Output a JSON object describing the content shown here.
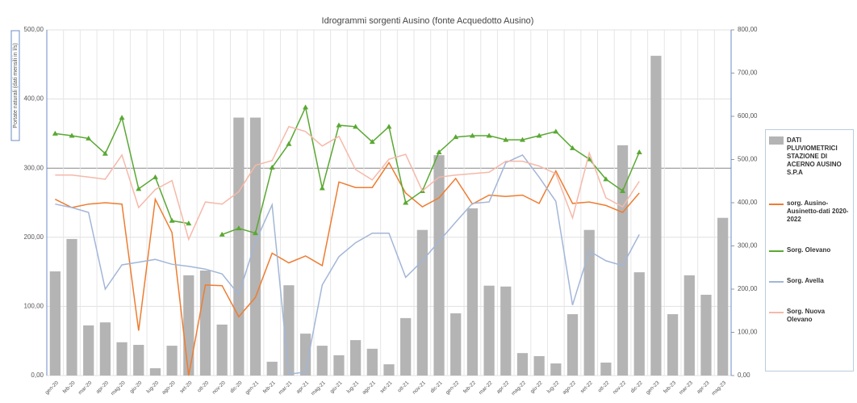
{
  "chart_data": {
    "type": "combo",
    "title": "Idrogrammi sorgenti Ausino (fonte Acquedotto Ausino)",
    "y_label": "Portate naturali  (dati mensili in l/s)",
    "categories": [
      "gen-20",
      "feb-20",
      "mar-20",
      "apr-20",
      "mag-20",
      "giu-20",
      "lug-20",
      "ago-20",
      "set-20",
      "ott-20",
      "nov-20",
      "dic-20",
      "gen-21",
      "feb-21",
      "mar-21",
      "apr-21",
      "mag-21",
      "giu-21",
      "lug-21",
      "ago-21",
      "set-21",
      "ott-21",
      "nov-21",
      "dic-21",
      "gen-22",
      "feb-22",
      "mar-22",
      "apr-22",
      "mag-22",
      "giu-22",
      "lug-22",
      "ago-22",
      "set-22",
      "ott-22",
      "nov-22",
      "dic-22",
      "gen-23",
      "feb-23",
      "mar-23",
      "apr-23",
      "mag-23"
    ],
    "ylim": [
      0,
      500
    ],
    "yticks": [
      {
        "value": 0,
        "label": "0,00"
      },
      {
        "value": 100,
        "label": "100,00"
      },
      {
        "value": 200,
        "label": "200,00"
      },
      {
        "value": 300,
        "label": "300,00"
      },
      {
        "value": 400,
        "label": "400,00"
      },
      {
        "value": 500,
        "label": "500,00"
      }
    ],
    "y2lim": [
      0,
      800
    ],
    "y2ticks": [
      {
        "value": 0,
        "label": "0,00"
      },
      {
        "value": 100,
        "label": "100,00"
      },
      {
        "value": 200,
        "label": "200,00"
      },
      {
        "value": 300,
        "label": "300,00"
      },
      {
        "value": 400,
        "label": "400,00"
      },
      {
        "value": 500,
        "label": "500,00"
      },
      {
        "value": 600,
        "label": "600,00"
      },
      {
        "value": 700,
        "label": "700,00"
      },
      {
        "value": 800,
        "label": "800,00"
      }
    ],
    "grid": true,
    "legend": "right",
    "series": [
      {
        "name": "DATI PLUVIOMETRICI STAZIONE DI ACERNO AUSINO S.P.A",
        "type": "bar",
        "axis": "y2",
        "color": "#b4b4b4",
        "values": [
          241,
          316,
          116,
          123,
          77,
          71,
          17,
          69,
          232,
          243,
          118,
          597,
          597,
          32,
          209,
          97,
          69,
          47,
          82,
          62,
          26,
          133,
          337,
          510,
          144,
          387,
          208,
          206,
          52,
          45,
          28,
          142,
          337,
          30,
          533,
          239,
          740,
          142,
          232,
          187,
          365
        ]
      },
      {
        "name": "sorg. Ausino-Ausinetto-dati 2020-2022",
        "type": "line",
        "color": "#ed7d31",
        "values": [
          255,
          243,
          248,
          250,
          248,
          65,
          255,
          207,
          0,
          131,
          130,
          85,
          113,
          177,
          163,
          173,
          159,
          280,
          272,
          272,
          308,
          264,
          244,
          257,
          285,
          248,
          261,
          259,
          261,
          249,
          296,
          249,
          251,
          246,
          236,
          264,
          null,
          null,
          null,
          null,
          null
        ]
      },
      {
        "name": "Sorg. Olevano",
        "type": "line",
        "marker": "triangle",
        "color": "#5aa833",
        "values": [
          350,
          347,
          343,
          321,
          373,
          270,
          287,
          224,
          220,
          null,
          204,
          213,
          206,
          301,
          335,
          388,
          271,
          362,
          360,
          338,
          360,
          250,
          267,
          323,
          345,
          347,
          347,
          341,
          341,
          347,
          353,
          329,
          313,
          284,
          267,
          323,
          null,
          null,
          null,
          null,
          null
        ]
      },
      {
        "name": "Sorg. Avella",
        "type": "line",
        "color": "#a3b6d8",
        "values": [
          248,
          243,
          236,
          125,
          160,
          164,
          168,
          161,
          158,
          154,
          147,
          117,
          193,
          247,
          2,
          5,
          131,
          172,
          192,
          206,
          206,
          142,
          166,
          194,
          222,
          249,
          251,
          308,
          319,
          287,
          252,
          102,
          180,
          166,
          159,
          204,
          null,
          null,
          null,
          null,
          null
        ]
      },
      {
        "name": "Sorg. Nuova Olevano",
        "type": "line",
        "color": "#f5b9a9",
        "values": [
          290,
          290,
          287,
          284,
          319,
          243,
          269,
          282,
          197,
          251,
          248,
          266,
          304,
          311,
          360,
          353,
          332,
          346,
          298,
          283,
          313,
          320,
          267,
          287,
          290,
          292,
          294,
          310,
          310,
          303,
          292,
          228,
          322,
          257,
          244,
          281,
          null,
          null,
          null,
          null,
          null
        ]
      }
    ]
  }
}
